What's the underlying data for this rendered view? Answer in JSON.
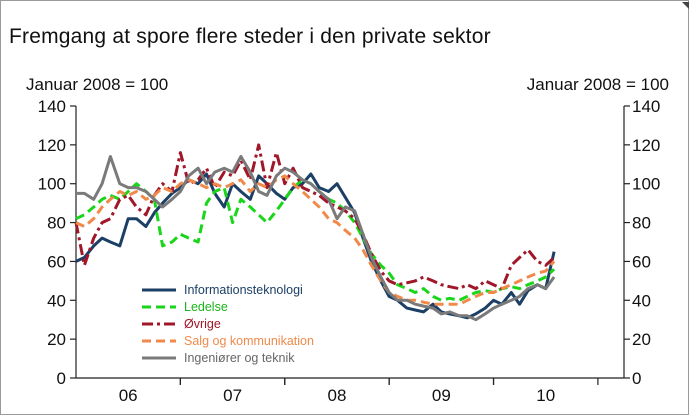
{
  "chart_data": {
    "type": "line",
    "title": "Fremgang at spore flere steder i den private  sektor",
    "ylabel_left": "Januar 2008 = 100",
    "ylabel_right": "Januar 2008 = 100",
    "ylim": [
      0,
      140
    ],
    "yticks": [
      0,
      20,
      40,
      60,
      80,
      100,
      120,
      140
    ],
    "xlim": [
      2005.5,
      2010.75
    ],
    "x_tick_labels": [
      {
        "label": "06",
        "x": 2006.0
      },
      {
        "label": "07",
        "x": 2007.0
      },
      {
        "label": "08",
        "x": 2008.0
      },
      {
        "label": "09",
        "x": 2009.0
      },
      {
        "label": "10",
        "x": 2010.0
      }
    ],
    "legend_position": "bottom-left",
    "series": [
      {
        "name": "Informationsteknologi",
        "color": "#1c3f66",
        "style": "solid",
        "x": [
          2005.5,
          2005.58,
          2005.67,
          2005.75,
          2005.83,
          2005.92,
          2006.0,
          2006.08,
          2006.17,
          2006.25,
          2006.33,
          2006.42,
          2006.5,
          2006.58,
          2006.67,
          2006.75,
          2006.83,
          2006.92,
          2007.0,
          2007.08,
          2007.17,
          2007.25,
          2007.33,
          2007.42,
          2007.5,
          2007.58,
          2007.67,
          2007.75,
          2007.83,
          2007.92,
          2008.0,
          2008.08,
          2008.17,
          2008.25,
          2008.33,
          2008.42,
          2008.5,
          2008.58,
          2008.67,
          2008.75,
          2008.83,
          2008.92,
          2009.0,
          2009.08,
          2009.17,
          2009.25,
          2009.33,
          2009.42,
          2009.5,
          2009.58,
          2009.67,
          2009.75,
          2009.83,
          2009.92,
          2010.0,
          2010.08
        ],
        "values": [
          60,
          62,
          68,
          72,
          70,
          68,
          82,
          82,
          78,
          85,
          90,
          95,
          98,
          102,
          100,
          105,
          95,
          88,
          100,
          96,
          92,
          104,
          100,
          95,
          92,
          98,
          100,
          105,
          98,
          96,
          100,
          93,
          85,
          72,
          60,
          50,
          42,
          40,
          36,
          35,
          34,
          38,
          34,
          33,
          32,
          31,
          33,
          36,
          40,
          38,
          44,
          38,
          45,
          48,
          46,
          65
        ]
      },
      {
        "name": "Ledelse",
        "color": "#1ad61a",
        "style": "dashed",
        "x": [
          2005.5,
          2005.58,
          2005.67,
          2005.75,
          2005.83,
          2005.92,
          2006.0,
          2006.08,
          2006.17,
          2006.25,
          2006.33,
          2006.42,
          2006.5,
          2006.58,
          2006.67,
          2006.75,
          2006.83,
          2006.92,
          2007.0,
          2007.08,
          2007.17,
          2007.25,
          2007.33,
          2007.42,
          2007.5,
          2007.58,
          2007.67,
          2007.75,
          2007.83,
          2007.92,
          2008.0,
          2008.08,
          2008.17,
          2008.25,
          2008.33,
          2008.42,
          2008.5,
          2008.58,
          2008.67,
          2008.75,
          2008.83,
          2008.92,
          2009.0,
          2009.08,
          2009.17,
          2009.25,
          2009.33,
          2009.42,
          2009.5,
          2009.58,
          2009.67,
          2009.75,
          2009.83,
          2009.92,
          2010.0,
          2010.08
        ],
        "values": [
          82,
          84,
          88,
          92,
          94,
          92,
          96,
          100,
          96,
          92,
          68,
          70,
          74,
          72,
          70,
          90,
          96,
          98,
          80,
          92,
          88,
          84,
          80,
          86,
          92,
          98,
          102,
          100,
          96,
          92,
          90,
          86,
          80,
          72,
          64,
          58,
          54,
          48,
          46,
          44,
          46,
          42,
          40,
          41,
          40,
          42,
          44,
          45,
          44,
          46,
          47,
          46,
          48,
          50,
          52,
          56
        ]
      },
      {
        "name": "Øvrige",
        "color": "#a0172a",
        "style": "dashdot",
        "x": [
          2005.5,
          2005.58,
          2005.67,
          2005.75,
          2005.83,
          2005.92,
          2006.0,
          2006.08,
          2006.17,
          2006.25,
          2006.33,
          2006.42,
          2006.5,
          2006.58,
          2006.67,
          2006.75,
          2006.83,
          2006.92,
          2007.0,
          2007.08,
          2007.17,
          2007.25,
          2007.33,
          2007.42,
          2007.5,
          2007.58,
          2007.67,
          2007.75,
          2007.83,
          2007.92,
          2008.0,
          2008.08,
          2008.17,
          2008.25,
          2008.33,
          2008.42,
          2008.5,
          2008.58,
          2008.67,
          2008.75,
          2008.83,
          2008.92,
          2009.0,
          2009.08,
          2009.17,
          2009.25,
          2009.33,
          2009.42,
          2009.5,
          2009.58,
          2009.67,
          2009.75,
          2009.83,
          2009.92,
          2010.0,
          2010.08
        ],
        "values": [
          80,
          58,
          72,
          80,
          82,
          92,
          94,
          88,
          84,
          94,
          100,
          96,
          116,
          100,
          102,
          108,
          98,
          106,
          104,
          112,
          102,
          120,
          98,
          116,
          100,
          108,
          98,
          96,
          94,
          90,
          88,
          86,
          82,
          74,
          64,
          55,
          50,
          48,
          49,
          50,
          52,
          50,
          48,
          47,
          46,
          48,
          46,
          50,
          48,
          46,
          58,
          62,
          66,
          60,
          58,
          62
        ]
      },
      {
        "name": "Salg og kommunikation",
        "color": "#f08a4b",
        "style": "dashed",
        "x": [
          2005.5,
          2005.58,
          2005.67,
          2005.75,
          2005.83,
          2005.92,
          2006.0,
          2006.08,
          2006.17,
          2006.25,
          2006.33,
          2006.42,
          2006.5,
          2006.58,
          2006.67,
          2006.75,
          2006.83,
          2006.92,
          2007.0,
          2007.08,
          2007.17,
          2007.25,
          2007.33,
          2007.42,
          2007.5,
          2007.58,
          2007.67,
          2007.75,
          2007.83,
          2007.92,
          2008.0,
          2008.08,
          2008.17,
          2008.25,
          2008.33,
          2008.42,
          2008.5,
          2008.58,
          2008.67,
          2008.75,
          2008.83,
          2008.92,
          2009.0,
          2009.08,
          2009.17,
          2009.25,
          2009.33,
          2009.42,
          2009.5,
          2009.58,
          2009.67,
          2009.75,
          2009.83,
          2009.92,
          2010.0,
          2010.08
        ],
        "values": [
          80,
          78,
          82,
          88,
          92,
          96,
          94,
          96,
          92,
          94,
          98,
          96,
          100,
          102,
          100,
          98,
          100,
          98,
          100,
          102,
          96,
          100,
          98,
          102,
          104,
          100,
          96,
          92,
          88,
          82,
          80,
          76,
          72,
          66,
          58,
          50,
          44,
          42,
          40,
          40,
          39,
          38,
          38,
          38,
          38,
          40,
          42,
          44,
          44,
          46,
          48,
          50,
          52,
          54,
          55,
          60
        ]
      },
      {
        "name": "Ingeniører og teknik",
        "color": "#7a7a7a",
        "style": "solid",
        "x": [
          2005.5,
          2005.58,
          2005.67,
          2005.75,
          2005.83,
          2005.92,
          2006.0,
          2006.08,
          2006.17,
          2006.25,
          2006.33,
          2006.42,
          2006.5,
          2006.58,
          2006.67,
          2006.75,
          2006.83,
          2006.92,
          2007.0,
          2007.08,
          2007.17,
          2007.25,
          2007.33,
          2007.42,
          2007.5,
          2007.58,
          2007.67,
          2007.75,
          2007.83,
          2007.92,
          2008.0,
          2008.08,
          2008.17,
          2008.25,
          2008.33,
          2008.42,
          2008.5,
          2008.58,
          2008.67,
          2008.75,
          2008.83,
          2008.92,
          2009.0,
          2009.08,
          2009.17,
          2009.25,
          2009.33,
          2009.42,
          2009.5,
          2009.58,
          2009.67,
          2009.75,
          2009.83,
          2009.92,
          2010.0,
          2010.08
        ],
        "values": [
          95,
          95,
          92,
          100,
          114,
          100,
          98,
          98,
          96,
          92,
          88,
          92,
          96,
          104,
          108,
          100,
          106,
          108,
          106,
          114,
          106,
          96,
          94,
          104,
          108,
          106,
          102,
          100,
          96,
          92,
          82,
          88,
          86,
          74,
          62,
          52,
          44,
          40,
          40,
          38,
          37,
          36,
          33,
          34,
          32,
          32,
          30,
          33,
          36,
          38,
          40,
          42,
          46,
          48,
          46,
          52
        ]
      }
    ]
  }
}
